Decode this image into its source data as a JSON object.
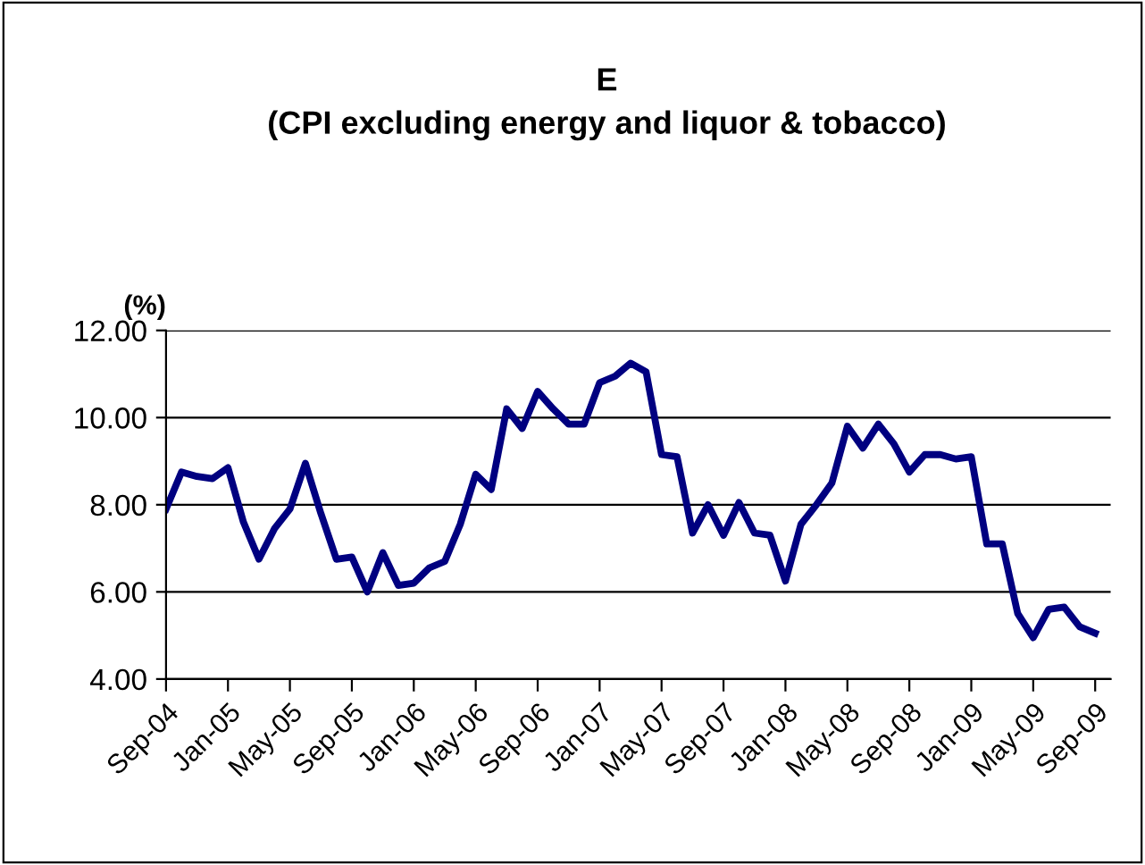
{
  "chart_data": {
    "type": "line",
    "title": "E",
    "subtitle": "(CPI excluding energy and liquor & tobacco)",
    "ylabel": "(%)",
    "x": [
      "2004-09",
      "2004-10",
      "2004-11",
      "2004-12",
      "2005-01",
      "2005-02",
      "2005-03",
      "2005-04",
      "2005-05",
      "2005-06",
      "2005-07",
      "2005-08",
      "2005-09",
      "2005-10",
      "2005-11",
      "2005-12",
      "2006-01",
      "2006-02",
      "2006-03",
      "2006-04",
      "2006-05",
      "2006-06",
      "2006-07",
      "2006-08",
      "2006-09",
      "2006-10",
      "2006-11",
      "2006-12",
      "2007-01",
      "2007-02",
      "2007-03",
      "2007-04",
      "2007-05",
      "2007-06",
      "2007-07",
      "2007-08",
      "2007-09",
      "2007-10",
      "2007-11",
      "2007-12",
      "2008-01",
      "2008-02",
      "2008-03",
      "2008-04",
      "2008-05",
      "2008-06",
      "2008-07",
      "2008-08",
      "2008-09",
      "2008-10",
      "2008-11",
      "2008-12",
      "2009-01",
      "2009-02",
      "2009-03",
      "2009-04",
      "2009-05",
      "2009-06",
      "2009-07",
      "2009-08",
      "2009-09"
    ],
    "series": [
      {
        "color": "#000080",
        "values": [
          7.9,
          8.75,
          8.65,
          8.6,
          8.85,
          7.6,
          6.75,
          7.45,
          7.9,
          8.95,
          7.8,
          6.75,
          6.8,
          6.0,
          6.9,
          6.15,
          6.2,
          6.55,
          6.7,
          7.55,
          8.7,
          8.35,
          10.2,
          9.75,
          10.6,
          10.2,
          9.85,
          9.85,
          10.8,
          10.95,
          11.25,
          11.05,
          9.15,
          9.1,
          7.35,
          8.0,
          7.3,
          8.05,
          7.35,
          7.3,
          6.25,
          7.55,
          8.0,
          8.5,
          9.8,
          9.3,
          9.85,
          9.4,
          8.75,
          9.15,
          9.15,
          9.05,
          9.1,
          7.1,
          7.1,
          5.5,
          4.95,
          5.6,
          5.65,
          5.2,
          5.05
        ]
      }
    ],
    "xlim": [
      "2004-09",
      "2009-10"
    ],
    "xticks": [
      {
        "value": "2004-09",
        "label": "Sep-04"
      },
      {
        "value": "2005-01",
        "label": "Jan-05"
      },
      {
        "value": "2005-05",
        "label": "May-05"
      },
      {
        "value": "2005-09",
        "label": "Sep-05"
      },
      {
        "value": "2006-01",
        "label": "Jan-06"
      },
      {
        "value": "2006-05",
        "label": "May-06"
      },
      {
        "value": "2006-09",
        "label": "Sep-06"
      },
      {
        "value": "2007-01",
        "label": "Jan-07"
      },
      {
        "value": "2007-05",
        "label": "May-07"
      },
      {
        "value": "2007-09",
        "label": "Sep-07"
      },
      {
        "value": "2008-01",
        "label": "Jan-08"
      },
      {
        "value": "2008-05",
        "label": "May-08"
      },
      {
        "value": "2008-09",
        "label": "Sep-08"
      },
      {
        "value": "2009-01",
        "label": "Jan-09"
      },
      {
        "value": "2009-05",
        "label": "May-09"
      },
      {
        "value": "2009-09",
        "label": "Sep-09"
      }
    ],
    "ylim": [
      4,
      12
    ],
    "yticks": [
      {
        "value": 4,
        "label": "4.00"
      },
      {
        "value": 6,
        "label": "6.00"
      },
      {
        "value": 8,
        "label": "8.00"
      },
      {
        "value": 10,
        "label": "10.00"
      },
      {
        "value": 12,
        "label": "12.00"
      }
    ],
    "grid": "y",
    "marker": "none",
    "line_style": "solid"
  }
}
